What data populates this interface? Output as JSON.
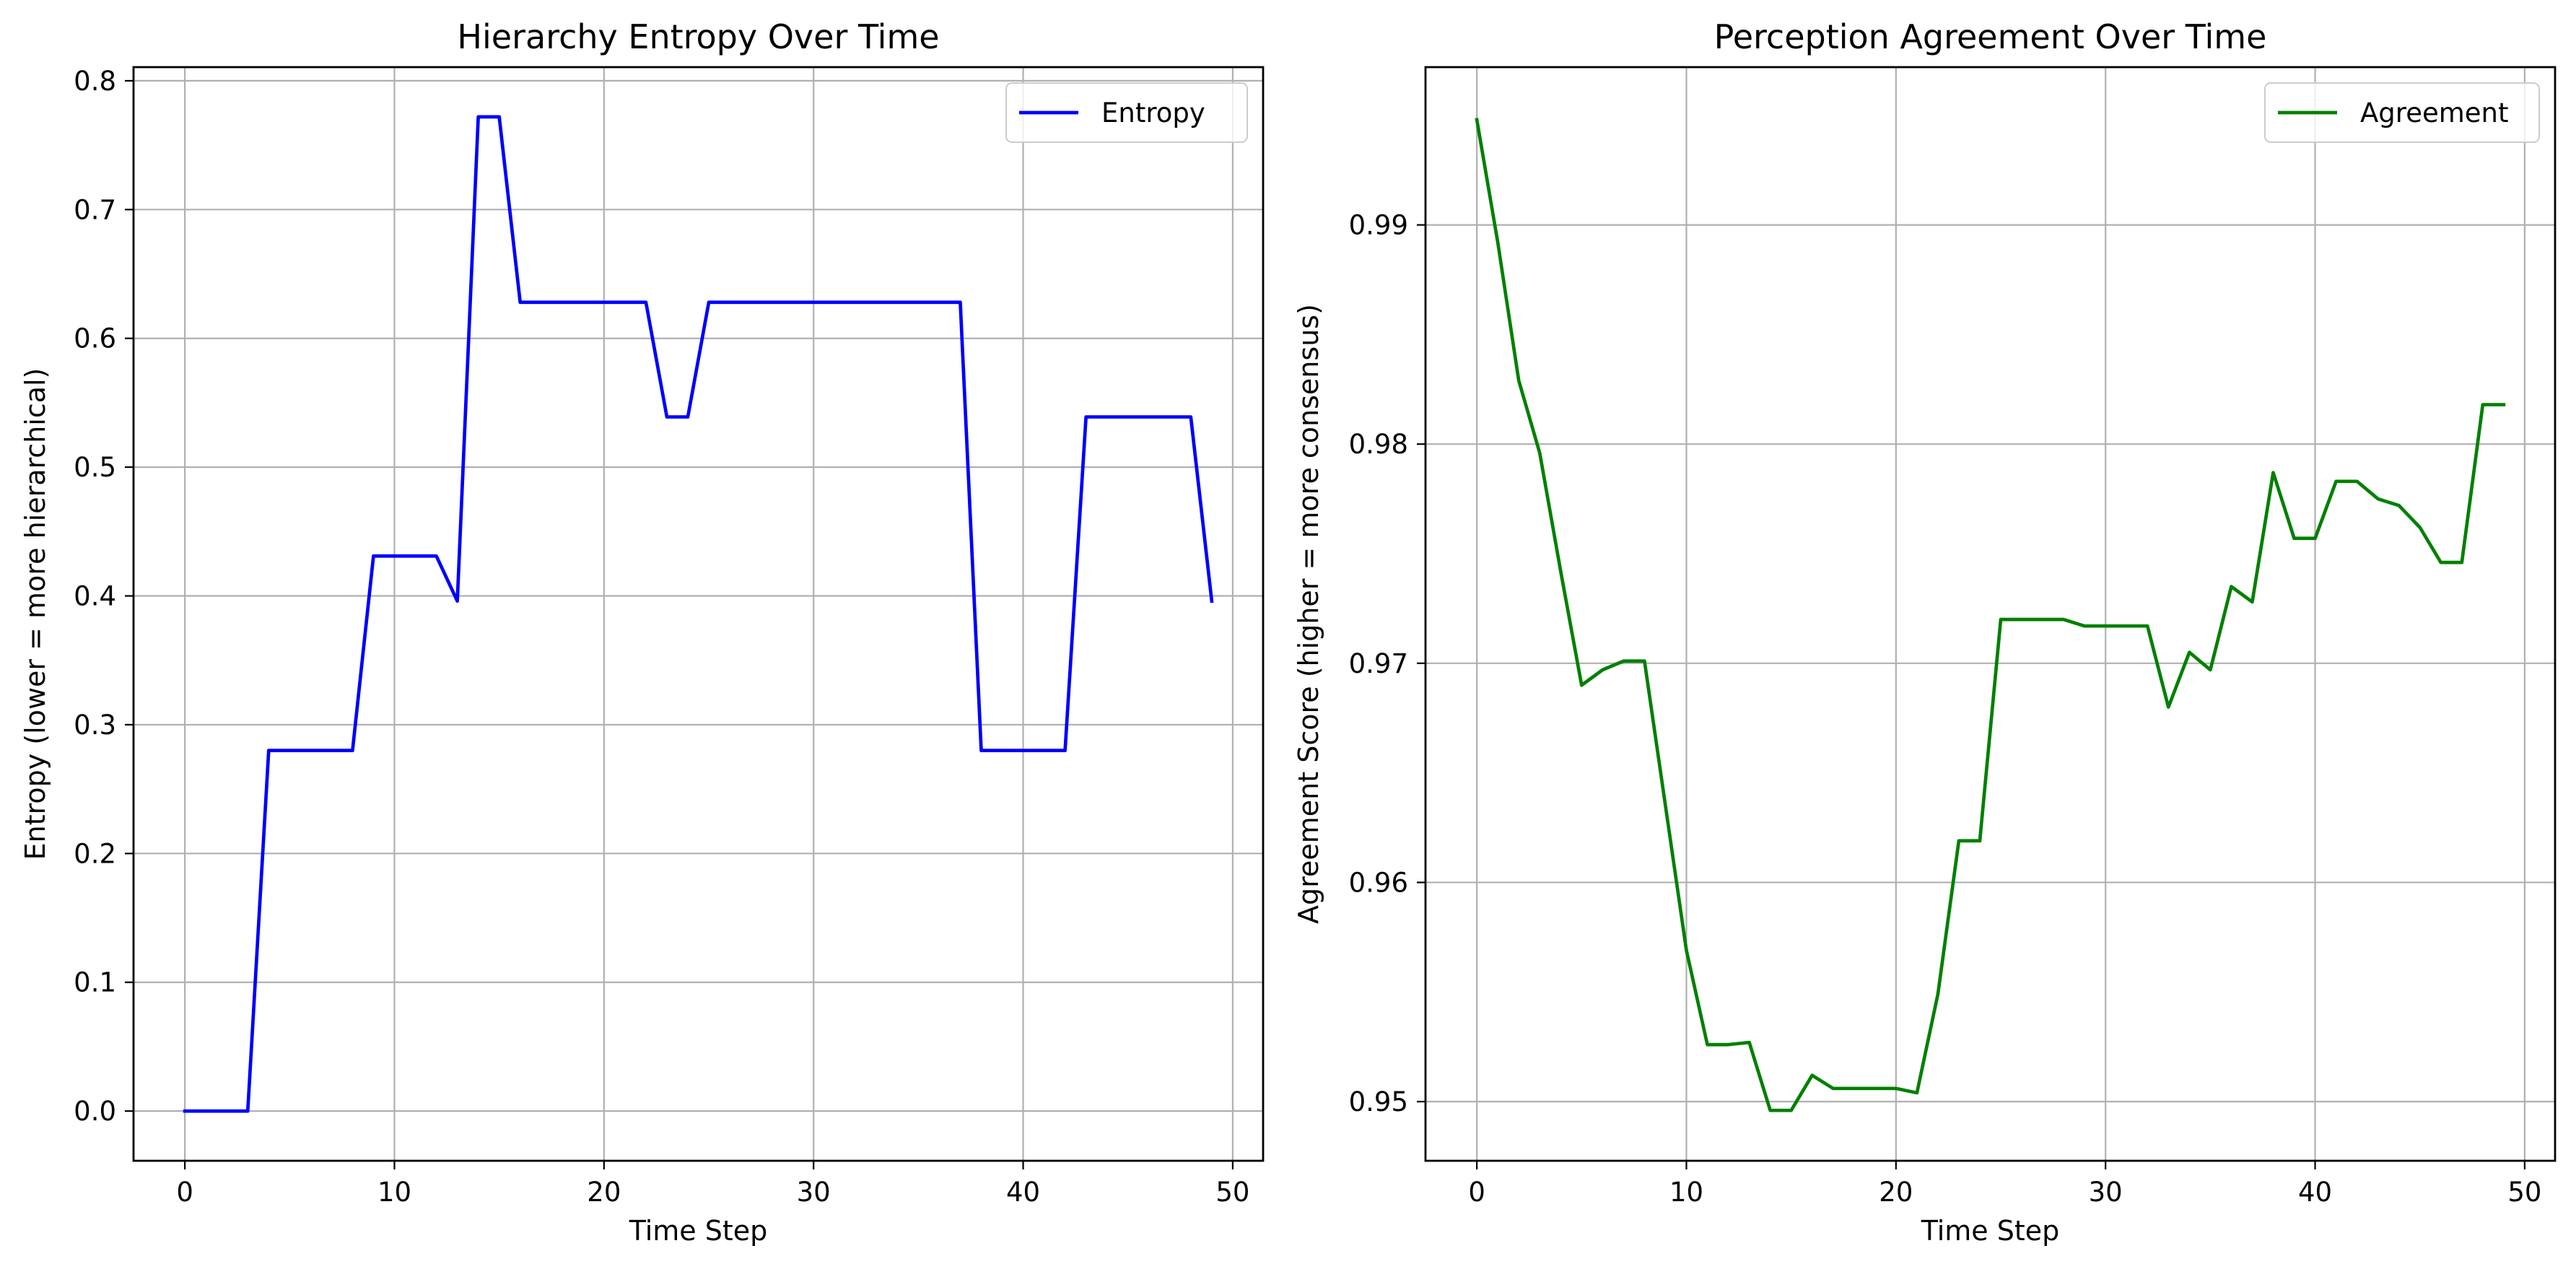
{
  "chart_data": [
    {
      "type": "line",
      "title": "Hierarchy Entropy Over Time",
      "xlabel": "Time Step",
      "ylabel": "Entropy (lower = more hierarchical)",
      "xlim": [
        -2.45,
        51.45
      ],
      "ylim": [
        -0.0386,
        0.8106
      ],
      "xticks": [
        0,
        10,
        20,
        30,
        40,
        50
      ],
      "yticks": [
        0.0,
        0.1,
        0.2,
        0.3,
        0.4,
        0.5,
        0.6,
        0.7,
        0.8
      ],
      "ytick_decimals": 1,
      "grid": true,
      "legend_position": "upper right",
      "series": [
        {
          "name": "Entropy",
          "color": "#0000ff",
          "x": [
            0,
            1,
            2,
            3,
            4,
            5,
            6,
            7,
            8,
            9,
            10,
            11,
            12,
            13,
            14,
            15,
            16,
            17,
            18,
            19,
            20,
            21,
            22,
            23,
            24,
            25,
            26,
            27,
            28,
            29,
            30,
            31,
            32,
            33,
            34,
            35,
            36,
            37,
            38,
            39,
            40,
            41,
            42,
            43,
            44,
            45,
            46,
            47,
            48,
            49
          ],
          "y": [
            0.0,
            0.0,
            0.0,
            0.0,
            0.28,
            0.28,
            0.28,
            0.28,
            0.28,
            0.431,
            0.431,
            0.431,
            0.431,
            0.396,
            0.772,
            0.772,
            0.628,
            0.628,
            0.628,
            0.628,
            0.628,
            0.628,
            0.628,
            0.539,
            0.539,
            0.628,
            0.628,
            0.628,
            0.628,
            0.628,
            0.628,
            0.628,
            0.628,
            0.628,
            0.628,
            0.628,
            0.628,
            0.628,
            0.28,
            0.28,
            0.28,
            0.28,
            0.28,
            0.539,
            0.539,
            0.539,
            0.539,
            0.539,
            0.539,
            0.396
          ]
        }
      ]
    },
    {
      "type": "line",
      "title": "Perception Agreement Over Time",
      "xlabel": "Time Step",
      "ylabel": "Agreement Score (higher = more consensus)",
      "xlim": [
        -2.45,
        51.45
      ],
      "ylim": [
        0.9473,
        0.9972
      ],
      "xticks": [
        0,
        10,
        20,
        30,
        40,
        50
      ],
      "yticks": [
        0.95,
        0.96,
        0.97,
        0.98,
        0.99
      ],
      "ytick_decimals": 2,
      "grid": true,
      "legend_position": "upper right",
      "series": [
        {
          "name": "Agreement",
          "color": "#008000",
          "x": [
            0,
            1,
            2,
            3,
            4,
            5,
            6,
            7,
            8,
            9,
            10,
            11,
            12,
            13,
            14,
            15,
            16,
            17,
            18,
            19,
            20,
            21,
            22,
            23,
            24,
            25,
            26,
            27,
            28,
            29,
            30,
            31,
            32,
            33,
            34,
            35,
            36,
            37,
            38,
            39,
            40,
            41,
            42,
            43,
            44,
            45,
            46,
            47,
            48,
            49
          ],
          "y": [
            0.9948,
            0.9892,
            0.9829,
            0.9796,
            0.9742,
            0.969,
            0.9697,
            0.9701,
            0.9701,
            0.9635,
            0.9569,
            0.9526,
            0.9526,
            0.9527,
            0.9496,
            0.9496,
            0.9512,
            0.9506,
            0.9506,
            0.9506,
            0.9506,
            0.9504,
            0.9549,
            0.9619,
            0.9619,
            0.972,
            0.972,
            0.972,
            0.972,
            0.9717,
            0.9717,
            0.9717,
            0.9717,
            0.968,
            0.9705,
            0.9697,
            0.9735,
            0.9728,
            0.9787,
            0.9757,
            0.9757,
            0.9783,
            0.9783,
            0.9775,
            0.9772,
            0.9762,
            0.9746,
            0.9746,
            0.9818,
            0.9818
          ]
        }
      ]
    }
  ]
}
